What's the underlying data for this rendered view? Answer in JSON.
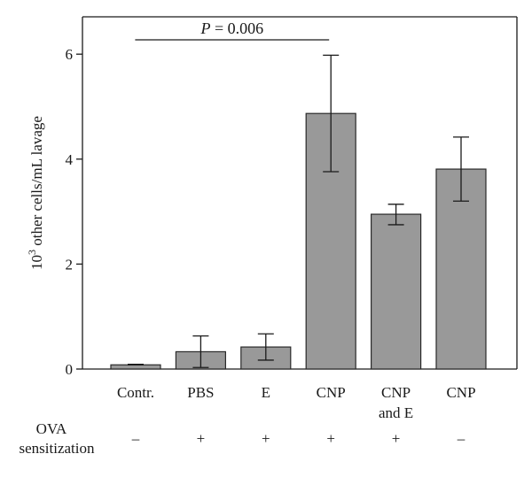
{
  "chart_data": {
    "type": "bar",
    "categories": [
      {
        "line1": "Contr.",
        "line2": ""
      },
      {
        "line1": "PBS",
        "line2": ""
      },
      {
        "line1": "E",
        "line2": ""
      },
      {
        "line1": "CNP",
        "line2": ""
      },
      {
        "line1": "CNP",
        "line2": "and E"
      },
      {
        "line1": "CNP",
        "line2": ""
      }
    ],
    "values": [
      0.08,
      0.33,
      0.42,
      4.87,
      2.95,
      3.81
    ],
    "error_low": [
      0.08,
      0.03,
      0.17,
      3.76,
      2.75,
      3.2
    ],
    "error_high": [
      0.09,
      0.63,
      0.67,
      5.98,
      3.14,
      4.42
    ],
    "ylabel_base": "10",
    "ylabel_sup": "3",
    "ylabel_rest": " other cells/mL lavage",
    "ylim": [
      0,
      6.6
    ],
    "yticks": [
      0,
      2,
      4,
      6
    ],
    "annotation": {
      "italic": "P",
      "text": " = 0.006",
      "from_category": 1,
      "to_category": 3
    },
    "sensitization": {
      "label_line1": "OVA",
      "label_line2": "sensitization",
      "values": [
        "–",
        "+",
        "+",
        "+",
        "+",
        "–"
      ]
    },
    "bar_color": "#999999",
    "edge_color": "#2a2a2a",
    "grid": false
  }
}
